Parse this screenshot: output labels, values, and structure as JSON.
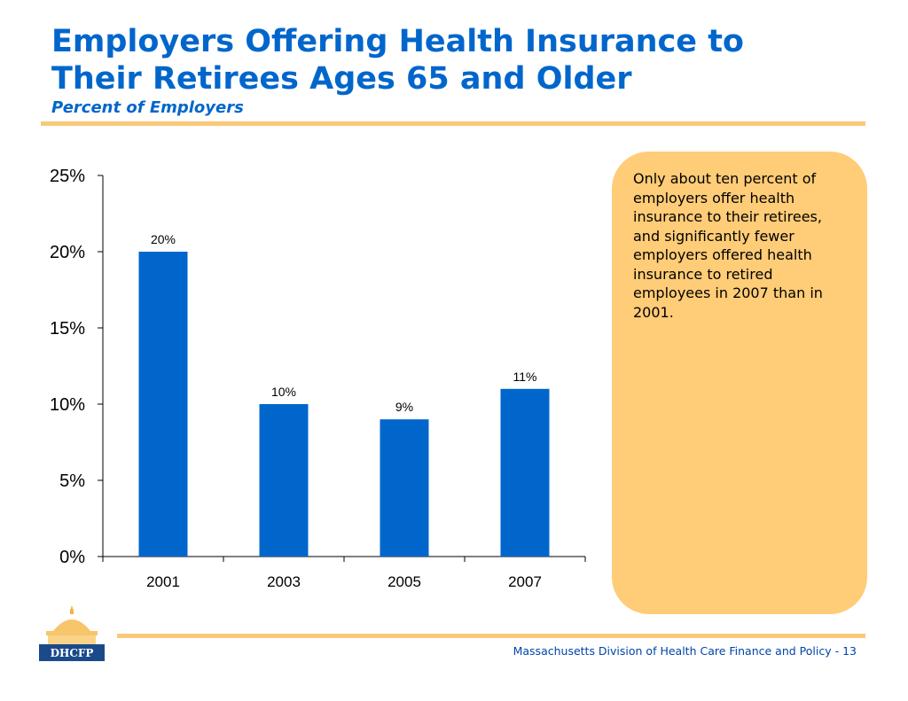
{
  "title_line1": "Employers Offering Health Insurance to",
  "title_line2": "Their Retirees Ages 65 and Older",
  "subtitle": "Percent of Employers",
  "callout": "Only about ten percent of employers offer health insurance to their retirees, and significantly fewer employers offered health insurance to retired employees in 2007 than in 2001.",
  "footer": "Massachusetts Division of Health Care Finance and Policy - 13",
  "logo_text": "DHCFP",
  "colors": {
    "title": "#0066cc",
    "bar": "#0066cc",
    "accent_rule": "#f9c97a",
    "callout_bg": "#ffcc77",
    "footer": "#0044aa",
    "logo_navy": "#1a4a8a"
  },
  "chart_data": {
    "type": "bar",
    "title": "Employers Offering Health Insurance to Their Retirees Ages 65 and Older",
    "subtitle": "Percent of Employers",
    "categories": [
      "2001",
      "2003",
      "2005",
      "2007"
    ],
    "values": [
      20,
      10,
      9,
      11
    ],
    "value_labels": [
      "20%",
      "10%",
      "9%",
      "11%"
    ],
    "ylim": [
      0,
      25
    ],
    "yticks": [
      0,
      5,
      10,
      15,
      20,
      25
    ],
    "ytick_labels": [
      "0%",
      "5%",
      "10%",
      "15%",
      "20%",
      "25%"
    ],
    "xlabel": "",
    "ylabel": "",
    "grid": false,
    "legend": "none"
  }
}
